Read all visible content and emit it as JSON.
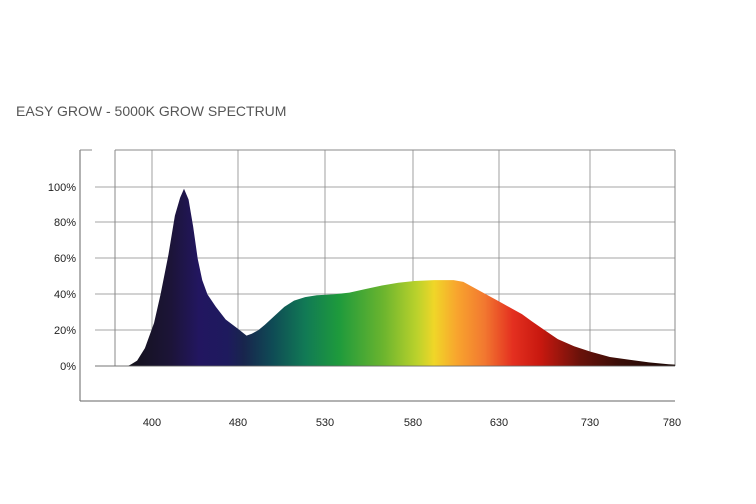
{
  "chart_data": {
    "type": "area",
    "title": "EASY GROW - 5000K GROW SPECTRUM",
    "xlabel": "",
    "ylabel": "",
    "x_ticks": [
      "400",
      "480",
      "530",
      "580",
      "630",
      "730",
      "780"
    ],
    "y_ticks": [
      "0%",
      "20%",
      "40%",
      "60%",
      "80%",
      "100%"
    ],
    "ylim": [
      0,
      100
    ],
    "grid": true,
    "legend": "none",
    "series": [
      {
        "points": [
          [
            0.0,
            0
          ],
          [
            0.05,
            1
          ],
          [
            0.14,
            3
          ],
          [
            0.26,
            10
          ],
          [
            0.4,
            24
          ],
          [
            0.5,
            40
          ],
          [
            0.62,
            62
          ],
          [
            0.72,
            84
          ],
          [
            0.8,
            94
          ],
          [
            0.86,
            99
          ],
          [
            0.93,
            93
          ],
          [
            1.0,
            78
          ],
          [
            1.07,
            60
          ],
          [
            1.14,
            48
          ],
          [
            1.22,
            40
          ],
          [
            1.35,
            33
          ],
          [
            1.5,
            26
          ],
          [
            1.68,
            21
          ],
          [
            1.82,
            17
          ],
          [
            1.9,
            18
          ],
          [
            2.0,
            20
          ],
          [
            2.1,
            23
          ],
          [
            2.25,
            28
          ],
          [
            2.4,
            33
          ],
          [
            2.55,
            36.5
          ],
          [
            2.72,
            38.5
          ],
          [
            2.9,
            39.5
          ],
          [
            3.15,
            40
          ],
          [
            3.4,
            41
          ],
          [
            3.65,
            43
          ],
          [
            3.9,
            45
          ],
          [
            4.15,
            46.5
          ],
          [
            4.4,
            47.5
          ],
          [
            4.7,
            48
          ],
          [
            5.0,
            48
          ],
          [
            5.15,
            47
          ],
          [
            5.3,
            44
          ],
          [
            5.5,
            40
          ],
          [
            5.7,
            36
          ],
          [
            5.9,
            32
          ],
          [
            6.05,
            29
          ],
          [
            6.2,
            25
          ],
          [
            6.4,
            20
          ],
          [
            6.6,
            15
          ],
          [
            6.85,
            11
          ],
          [
            7.1,
            8
          ],
          [
            7.4,
            5
          ],
          [
            7.7,
            3.5
          ],
          [
            8.0,
            2
          ],
          [
            8.3,
            1
          ],
          [
            8.4,
            0.8
          ]
        ]
      }
    ]
  }
}
